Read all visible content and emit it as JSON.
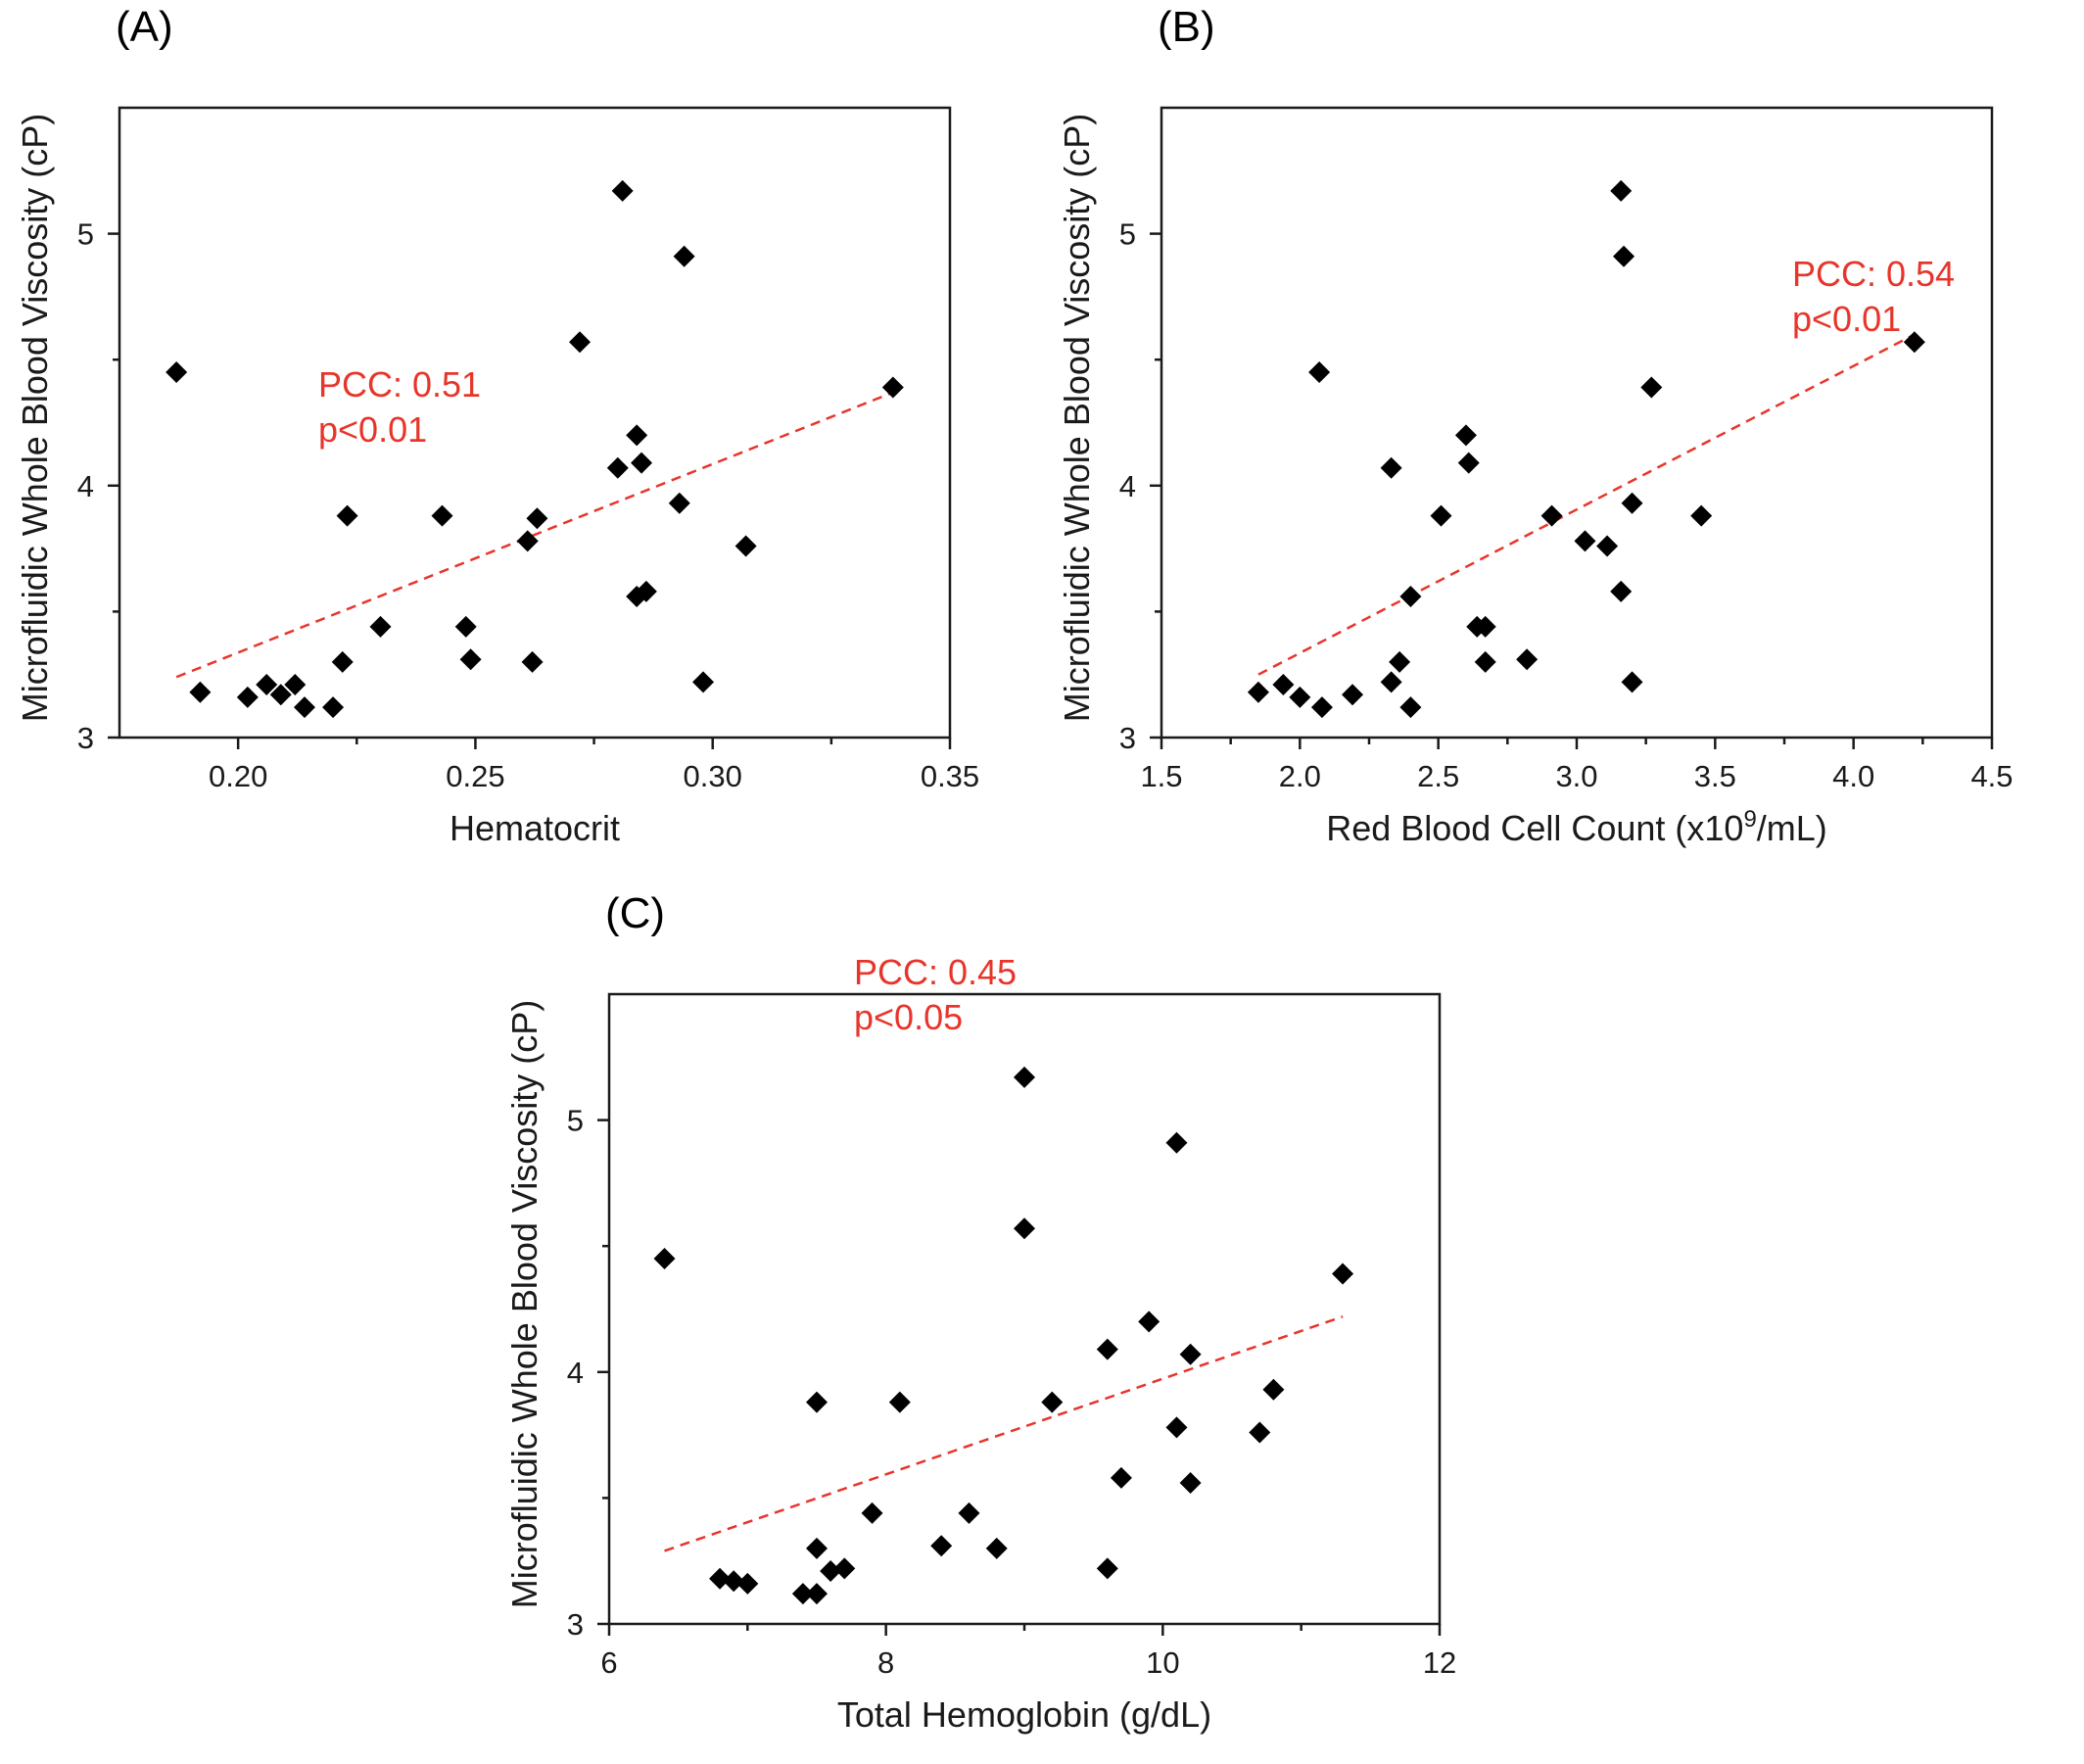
{
  "chart_data": [
    {
      "type": "scatter",
      "panel_label": "(A)",
      "xlabel": "Hematocrit",
      "ylabel": "Microfluidic Whole Blood Viscosity (cP)",
      "xlim": [
        0.175,
        0.35
      ],
      "ylim": [
        3,
        5.5
      ],
      "xticks": [
        0.2,
        0.25,
        0.3,
        0.35
      ],
      "xtick_labels": [
        "0.20",
        "0.25",
        "0.30",
        "0.35"
      ],
      "yticks": [
        3,
        4,
        5
      ],
      "ytick_labels": [
        "3",
        "4",
        "5"
      ],
      "annotation": [
        "PCC: 0.51",
        "p<0.01"
      ],
      "fit_line": [
        [
          0.187,
          3.24
        ],
        [
          0.338,
          4.37
        ]
      ],
      "points": [
        [
          0.187,
          4.45
        ],
        [
          0.192,
          3.18
        ],
        [
          0.202,
          3.16
        ],
        [
          0.206,
          3.21
        ],
        [
          0.209,
          3.17
        ],
        [
          0.212,
          3.21
        ],
        [
          0.214,
          3.12
        ],
        [
          0.22,
          3.12
        ],
        [
          0.222,
          3.3
        ],
        [
          0.223,
          3.88
        ],
        [
          0.23,
          3.44
        ],
        [
          0.243,
          3.88
        ],
        [
          0.248,
          3.44
        ],
        [
          0.249,
          3.31
        ],
        [
          0.261,
          3.78
        ],
        [
          0.262,
          3.3
        ],
        [
          0.263,
          3.87
        ],
        [
          0.272,
          4.57
        ],
        [
          0.28,
          4.07
        ],
        [
          0.281,
          5.17
        ],
        [
          0.284,
          4.2
        ],
        [
          0.284,
          3.56
        ],
        [
          0.285,
          4.09
        ],
        [
          0.286,
          3.58
        ],
        [
          0.293,
          3.93
        ],
        [
          0.294,
          4.91
        ],
        [
          0.298,
          3.22
        ],
        [
          0.307,
          3.76
        ],
        [
          0.338,
          4.39
        ]
      ]
    },
    {
      "type": "scatter",
      "panel_label": "(B)",
      "xlabel": "Red Blood Cell Count (x10",
      "xlabel_sup": "9",
      "xlabel_tail": "/mL)",
      "ylabel": "Microfluidic Whole Blood Viscosity (cP)",
      "xlim": [
        1.5,
        4.5
      ],
      "ylim": [
        3,
        5.5
      ],
      "xticks": [
        1.5,
        2.0,
        2.5,
        3.0,
        3.5,
        4.0,
        4.5
      ],
      "xtick_labels": [
        "1.5",
        "2.0",
        "2.5",
        "3.0",
        "3.5",
        "4.0",
        "4.5"
      ],
      "yticks": [
        3,
        4,
        5
      ],
      "ytick_labels": [
        "3",
        "4",
        "5"
      ],
      "annotation": [
        "PCC: 0.54",
        "p<0.01"
      ],
      "fit_line": [
        [
          1.85,
          3.25
        ],
        [
          4.22,
          4.6
        ]
      ],
      "points": [
        [
          1.85,
          3.18
        ],
        [
          1.94,
          3.21
        ],
        [
          2.0,
          3.16
        ],
        [
          2.07,
          4.45
        ],
        [
          2.08,
          3.12
        ],
        [
          2.19,
          3.17
        ],
        [
          2.33,
          4.07
        ],
        [
          2.33,
          3.22
        ],
        [
          2.36,
          3.3
        ],
        [
          2.4,
          3.56
        ],
        [
          2.4,
          3.12
        ],
        [
          2.51,
          3.88
        ],
        [
          2.6,
          4.2
        ],
        [
          2.61,
          4.09
        ],
        [
          2.64,
          3.44
        ],
        [
          2.67,
          3.44
        ],
        [
          2.67,
          3.3
        ],
        [
          2.82,
          3.31
        ],
        [
          2.91,
          3.88
        ],
        [
          3.03,
          3.78
        ],
        [
          3.11,
          3.76
        ],
        [
          3.16,
          5.17
        ],
        [
          3.16,
          3.58
        ],
        [
          3.17,
          4.91
        ],
        [
          3.2,
          3.93
        ],
        [
          3.2,
          3.22
        ],
        [
          3.27,
          4.39
        ],
        [
          3.45,
          3.88
        ],
        [
          4.22,
          4.57
        ]
      ]
    },
    {
      "type": "scatter",
      "panel_label": "(C)",
      "xlabel": "Total Hemoglobin (g/dL)",
      "ylabel": "Microfluidic Whole Blood Viscosity (cP)",
      "xlim": [
        6,
        12
      ],
      "ylim": [
        3,
        5.5
      ],
      "xticks": [
        6,
        8,
        10,
        12
      ],
      "xtick_labels": [
        "6",
        "8",
        "10",
        "12"
      ],
      "yticks": [
        3,
        4,
        5
      ],
      "ytick_labels": [
        "3",
        "4",
        "5"
      ],
      "annotation": [
        "PCC: 0.45",
        "p<0.05"
      ],
      "fit_line": [
        [
          6.4,
          3.29
        ],
        [
          11.3,
          4.22
        ]
      ],
      "points": [
        [
          6.4,
          4.45
        ],
        [
          6.8,
          3.18
        ],
        [
          6.9,
          3.17
        ],
        [
          7.0,
          3.16
        ],
        [
          7.4,
          3.12
        ],
        [
          7.5,
          3.12
        ],
        [
          7.5,
          3.3
        ],
        [
          7.5,
          3.88
        ],
        [
          7.6,
          3.21
        ],
        [
          7.7,
          3.22
        ],
        [
          7.9,
          3.44
        ],
        [
          8.1,
          3.88
        ],
        [
          8.4,
          3.31
        ],
        [
          8.6,
          3.44
        ],
        [
          8.8,
          3.3
        ],
        [
          9.0,
          5.17
        ],
        [
          9.0,
          4.57
        ],
        [
          9.2,
          3.88
        ],
        [
          9.6,
          4.09
        ],
        [
          9.6,
          3.22
        ],
        [
          9.7,
          3.58
        ],
        [
          9.9,
          4.2
        ],
        [
          10.1,
          4.91
        ],
        [
          10.1,
          3.78
        ],
        [
          10.2,
          4.07
        ],
        [
          10.2,
          3.56
        ],
        [
          10.7,
          3.76
        ],
        [
          10.8,
          3.93
        ],
        [
          11.3,
          4.39
        ]
      ]
    }
  ]
}
